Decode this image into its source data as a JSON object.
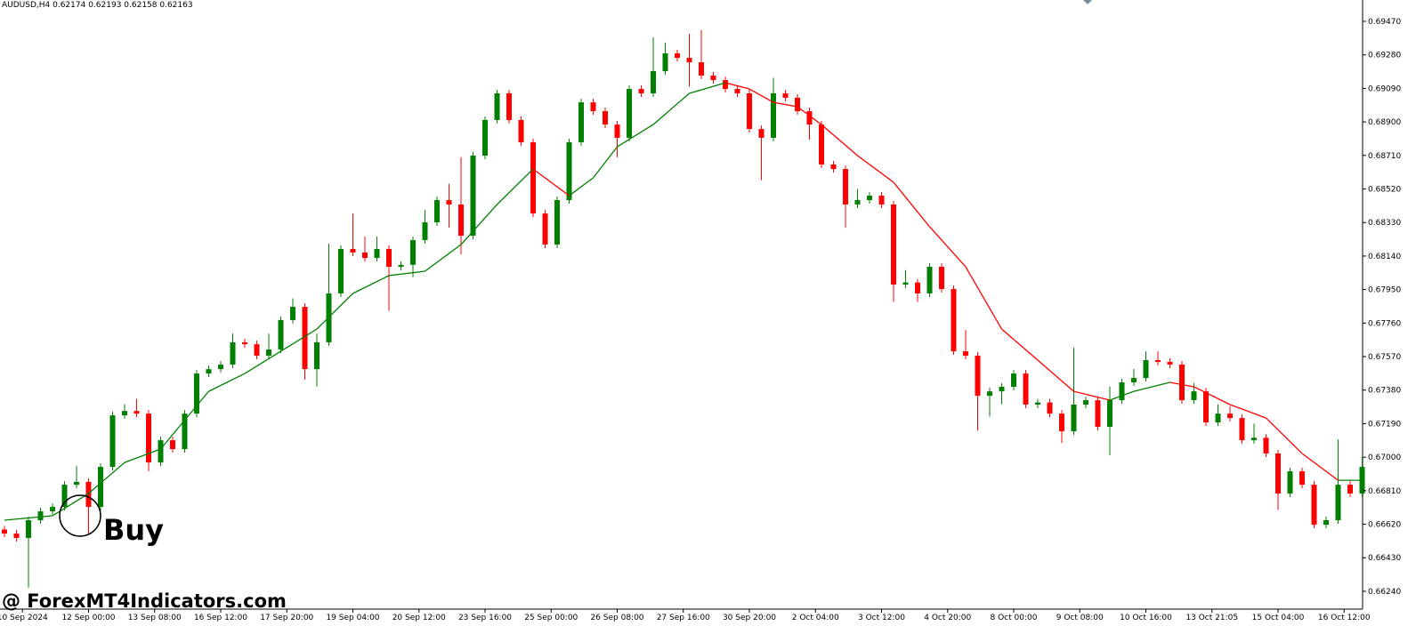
{
  "chart_data": {
    "type": "candlestick",
    "header": "AUDUSD,H4  0.62174 0.62193 0.62158 0.62163",
    "annotation": "Buy",
    "watermark": "@ ForexMT4Indicators.com",
    "up_color": "#008000",
    "down_color": "#ff0000",
    "ylim": [
      0.66144,
      0.69591
    ],
    "yticks": [
      {
        "value": 0.6624,
        "label": "0.66240"
      },
      {
        "value": 0.6643,
        "label": "0.66430"
      },
      {
        "value": 0.6662,
        "label": "0.66620"
      },
      {
        "value": 0.6681,
        "label": "0.66810"
      },
      {
        "value": 0.67,
        "label": "0.67000"
      },
      {
        "value": 0.6719,
        "label": "0.67190"
      },
      {
        "value": 0.6738,
        "label": "0.67380"
      },
      {
        "value": 0.6757,
        "label": "0.67570"
      },
      {
        "value": 0.6776,
        "label": "0.67760"
      },
      {
        "value": 0.6795,
        "label": "0.67950"
      },
      {
        "value": 0.6814,
        "label": "0.68140"
      },
      {
        "value": 0.6833,
        "label": "0.68330"
      },
      {
        "value": 0.6852,
        "label": "0.68520"
      },
      {
        "value": 0.6871,
        "label": "0.68710"
      },
      {
        "value": 0.689,
        "label": "0.68900"
      },
      {
        "value": 0.6909,
        "label": "0.69090"
      },
      {
        "value": 0.6928,
        "label": "0.69280"
      },
      {
        "value": 0.6947,
        "label": "0.69470"
      }
    ],
    "xticks": [
      {
        "value": 1.5,
        "label": "10 Sep 2024"
      },
      {
        "value": 7,
        "label": "12 Sep 00:00"
      },
      {
        "value": 12.5,
        "label": "13 Sep 08:00"
      },
      {
        "value": 18,
        "label": "16 Sep 12:00"
      },
      {
        "value": 23.5,
        "label": "17 Sep 20:00"
      },
      {
        "value": 29,
        "label": "19 Sep 04:00"
      },
      {
        "value": 34.5,
        "label": "20 Sep 12:00"
      },
      {
        "value": 40,
        "label": "23 Sep 16:00"
      },
      {
        "value": 45.5,
        "label": "25 Sep 00:00"
      },
      {
        "value": 51,
        "label": "26 Sep 08:00"
      },
      {
        "value": 56.5,
        "label": "27 Sep 16:00"
      },
      {
        "value": 62,
        "label": "30 Sep 20:00"
      },
      {
        "value": 67.5,
        "label": "2 Oct 04:00"
      },
      {
        "value": 73,
        "label": "3 Oct 12:00"
      },
      {
        "value": 78.5,
        "label": "4 Oct 20:00"
      },
      {
        "value": 84,
        "label": "8 Oct 00:00"
      },
      {
        "value": 89.5,
        "label": "9 Oct 08:00"
      },
      {
        "value": 95,
        "label": "10 Oct 16:00"
      },
      {
        "value": 100.5,
        "label": "13 Oct 21:05"
      },
      {
        "value": 106,
        "label": "15 Oct 04:00"
      },
      {
        "value": 111.5,
        "label": "16 Oct 12:00"
      }
    ],
    "candles": {
      "open": [
        0.6659,
        0.66567,
        0.66542,
        0.66643,
        0.66693,
        0.66718,
        0.66844,
        0.6686,
        0.66718,
        0.66945,
        0.67237,
        0.67262,
        0.67247,
        0.6697,
        0.67096,
        0.67046,
        0.67247,
        0.67474,
        0.67499,
        0.67525,
        0.67651,
        0.6764,
        0.67575,
        0.6761,
        0.67777,
        0.67852,
        0.67499,
        0.67651,
        0.67928,
        0.6818,
        0.6816,
        0.68129,
        0.6818,
        0.68079,
        0.6809,
        0.6823,
        0.68331,
        0.68457,
        0.68432,
        0.68255,
        0.68709,
        0.68911,
        0.69062,
        0.68911,
        0.68785,
        0.68381,
        0.68205,
        0.68457,
        0.68785,
        0.69011,
        0.68961,
        0.68885,
        0.6881,
        0.69087,
        0.69062,
        0.69188,
        0.69289,
        0.69263,
        0.69238,
        0.69163,
        0.69137,
        0.69087,
        0.69062,
        0.6886,
        0.6881,
        0.69062,
        0.69037,
        0.68961,
        0.68885,
        0.68659,
        0.68633,
        0.68432,
        0.68457,
        0.68482,
        0.68432,
        0.67978,
        0.6799,
        0.67928,
        0.68079,
        0.67953,
        0.676,
        0.67575,
        0.67348,
        0.67373,
        0.67399,
        0.67474,
        0.67298,
        0.6731,
        0.67247,
        0.67147,
        0.67298,
        0.67323,
        0.67172,
        0.67323,
        0.67424,
        0.67449,
        0.6755,
        0.6754,
        0.67525,
        0.67323,
        0.67373,
        0.67197,
        0.67247,
        0.67222,
        0.67096,
        0.6711,
        0.67021,
        0.66794,
        0.6692,
        0.66844,
        0.66617,
        0.66643,
        0.66844,
        0.66794
      ],
      "high": [
        0.6661,
        0.66587,
        0.66663,
        0.66713,
        0.66738,
        0.66864,
        0.6695,
        0.6688,
        0.66965,
        0.67257,
        0.673,
        0.6733,
        0.67267,
        0.67116,
        0.67116,
        0.67267,
        0.67494,
        0.67519,
        0.67545,
        0.677,
        0.67671,
        0.6766,
        0.677,
        0.67797,
        0.679,
        0.67872,
        0.677,
        0.6821,
        0.682,
        0.6838,
        0.6825,
        0.6825,
        0.682,
        0.6811,
        0.6825,
        0.684,
        0.68477,
        0.6855,
        0.687,
        0.68729,
        0.68931,
        0.69082,
        0.69082,
        0.68931,
        0.68805,
        0.68401,
        0.68477,
        0.68805,
        0.69031,
        0.69031,
        0.68981,
        0.68905,
        0.69107,
        0.69107,
        0.6938,
        0.6935,
        0.69309,
        0.694,
        0.6942,
        0.69183,
        0.69157,
        0.69107,
        0.69082,
        0.6888,
        0.6915,
        0.69082,
        0.69057,
        0.68981,
        0.68905,
        0.68679,
        0.68653,
        0.6852,
        0.68502,
        0.68502,
        0.68452,
        0.6806,
        0.6801,
        0.68099,
        0.68099,
        0.67973,
        0.6772,
        0.67595,
        0.67393,
        0.67419,
        0.67494,
        0.67494,
        0.6733,
        0.6733,
        0.67267,
        0.6762,
        0.67343,
        0.67343,
        0.674,
        0.67444,
        0.675,
        0.676,
        0.676,
        0.6756,
        0.67545,
        0.6742,
        0.67393,
        0.673,
        0.6729,
        0.67242,
        0.6719,
        0.6713,
        0.67041,
        0.6694,
        0.6694,
        0.66864,
        0.66663,
        0.671,
        0.66864,
        0.67
      ],
      "low": [
        0.66547,
        0.66522,
        0.6626,
        0.66623,
        0.66673,
        0.66698,
        0.66824,
        0.6656,
        0.66698,
        0.66925,
        0.67217,
        0.67227,
        0.6692,
        0.6695,
        0.67026,
        0.67026,
        0.67227,
        0.67454,
        0.67479,
        0.67505,
        0.6762,
        0.67555,
        0.67555,
        0.6759,
        0.67757,
        0.6744,
        0.674,
        0.67631,
        0.67908,
        0.6814,
        0.68109,
        0.68109,
        0.6783,
        0.68059,
        0.6802,
        0.6821,
        0.68311,
        0.683,
        0.6815,
        0.68235,
        0.68689,
        0.68891,
        0.68891,
        0.68765,
        0.68361,
        0.68185,
        0.68185,
        0.68437,
        0.68765,
        0.68941,
        0.68865,
        0.687,
        0.6879,
        0.69042,
        0.69042,
        0.69168,
        0.69243,
        0.691,
        0.69143,
        0.69117,
        0.69067,
        0.69042,
        0.6884,
        0.6857,
        0.6879,
        0.69017,
        0.68941,
        0.688,
        0.68639,
        0.68613,
        0.683,
        0.68412,
        0.68437,
        0.68412,
        0.6788,
        0.67958,
        0.6788,
        0.67908,
        0.67933,
        0.6758,
        0.67555,
        0.6715,
        0.6723,
        0.673,
        0.67379,
        0.67278,
        0.67278,
        0.67227,
        0.6708,
        0.67127,
        0.67278,
        0.67152,
        0.6701,
        0.67303,
        0.67404,
        0.67429,
        0.6752,
        0.67505,
        0.67303,
        0.67303,
        0.67177,
        0.67177,
        0.67202,
        0.67076,
        0.67076,
        0.67001,
        0.667,
        0.66774,
        0.66824,
        0.66597,
        0.66597,
        0.66623,
        0.66774,
        0.66774
      ],
      "close": [
        0.66567,
        0.66542,
        0.66643,
        0.66693,
        0.66718,
        0.66844,
        0.6686,
        0.66718,
        0.66945,
        0.67237,
        0.67262,
        0.67247,
        0.6697,
        0.67096,
        0.67046,
        0.67247,
        0.67474,
        0.67499,
        0.67525,
        0.67651,
        0.6764,
        0.67575,
        0.6761,
        0.67777,
        0.67852,
        0.67499,
        0.67651,
        0.67928,
        0.6818,
        0.6816,
        0.68129,
        0.6818,
        0.68079,
        0.6809,
        0.6823,
        0.68331,
        0.68457,
        0.68432,
        0.68255,
        0.68709,
        0.68911,
        0.69062,
        0.68911,
        0.68785,
        0.68381,
        0.68205,
        0.68457,
        0.68785,
        0.69011,
        0.68961,
        0.68885,
        0.6881,
        0.69087,
        0.69062,
        0.69188,
        0.69289,
        0.69263,
        0.69238,
        0.69163,
        0.69137,
        0.69087,
        0.69062,
        0.6886,
        0.6881,
        0.69062,
        0.69037,
        0.68961,
        0.68885,
        0.68659,
        0.68633,
        0.68432,
        0.68457,
        0.68482,
        0.68432,
        0.67978,
        0.6799,
        0.67928,
        0.68079,
        0.67953,
        0.676,
        0.67575,
        0.67348,
        0.67373,
        0.67399,
        0.67474,
        0.67298,
        0.6731,
        0.67247,
        0.67147,
        0.67298,
        0.67323,
        0.67172,
        0.67323,
        0.67424,
        0.67449,
        0.6755,
        0.6754,
        0.67525,
        0.67323,
        0.67373,
        0.67197,
        0.67247,
        0.67222,
        0.67096,
        0.6711,
        0.67021,
        0.66794,
        0.6692,
        0.66844,
        0.66617,
        0.66643,
        0.66844,
        0.66794,
        0.66945
      ]
    },
    "ma": {
      "x": [
        0,
        4,
        7,
        10,
        13,
        17,
        20,
        23,
        26,
        29,
        32,
        35,
        38,
        41,
        44,
        47,
        49,
        51,
        54,
        57,
        60,
        62,
        64,
        66,
        68,
        71,
        74,
        77,
        80,
        83,
        86,
        89,
        92,
        94,
        97,
        99,
        102,
        105,
        108,
        111,
        113
      ],
      "values": [
        0.66643,
        0.66668,
        0.66794,
        0.6697,
        0.67046,
        0.67373,
        0.67474,
        0.676,
        0.67726,
        0.67928,
        0.68029,
        0.68054,
        0.68205,
        0.68432,
        0.68633,
        0.68482,
        0.68583,
        0.68759,
        0.68885,
        0.69062,
        0.69122,
        0.69087,
        0.69011,
        0.68986,
        0.68885,
        0.68709,
        0.68558,
        0.68306,
        0.68079,
        0.67726,
        0.6755,
        0.67373,
        0.67323,
        0.67373,
        0.67424,
        0.67399,
        0.67298,
        0.67222,
        0.67021,
        0.66869,
        0.66869
      ]
    }
  }
}
